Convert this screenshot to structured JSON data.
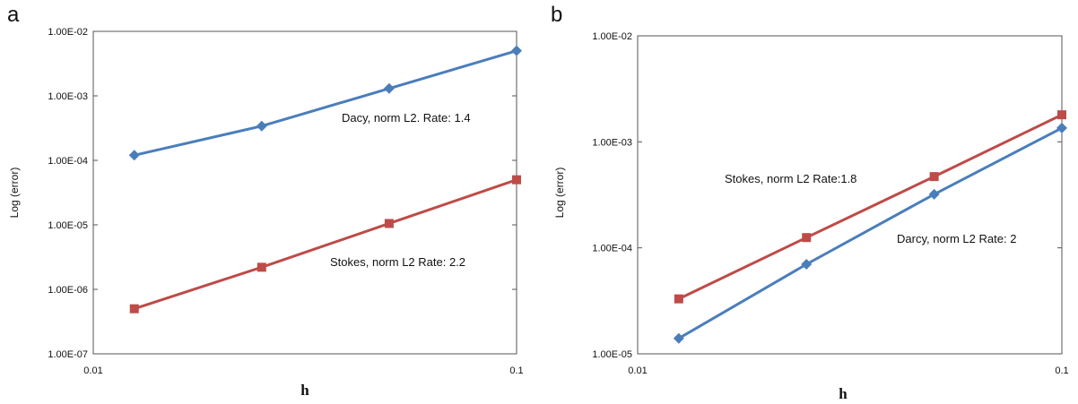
{
  "chart_data": [
    {
      "panel": "a",
      "type": "line",
      "xscale": "log",
      "yscale": "log",
      "xlabel": "h",
      "ylabel": "Log (error)",
      "xlim": [
        0.01,
        0.1
      ],
      "ylim": [
        1e-07,
        0.01
      ],
      "xticks": [
        "0.01",
        "0.1"
      ],
      "yticks": [
        "1.00E-07",
        "1.00E-06",
        "1.00E-05",
        "1.00E-04",
        "1.00E-03",
        "1.00E-02"
      ],
      "series": [
        {
          "color": "#4a7ebb",
          "marker": "diamond",
          "x": [
            0.0125,
            0.025,
            0.05,
            0.1
          ],
          "y": [
            0.00012,
            0.00034,
            0.0013,
            0.005
          ]
        },
        {
          "color": "#be4b48",
          "marker": "square",
          "x": [
            0.0125,
            0.025,
            0.05,
            0.1
          ],
          "y": [
            5e-07,
            2.2e-06,
            1.05e-05,
            5e-05
          ]
        }
      ],
      "annotations": [
        "Dacy, norm L2. Rate:  1.4",
        "Stokes, norm L2 Rate: 2.2"
      ]
    },
    {
      "panel": "b",
      "type": "line",
      "xscale": "log",
      "yscale": "log",
      "xlabel": "h",
      "ylabel": "Log (error)",
      "xlim": [
        0.01,
        0.1
      ],
      "ylim": [
        1e-05,
        0.01
      ],
      "xticks": [
        "0.01",
        "0.1"
      ],
      "yticks": [
        "1.00E-05",
        "1.00E-04",
        "1.00E-03",
        "1.00E-02"
      ],
      "series": [
        {
          "color": "#be4b48",
          "marker": "square",
          "x": [
            0.0125,
            0.025,
            0.05,
            0.1
          ],
          "y": [
            3.3e-05,
            0.000125,
            0.00047,
            0.0018
          ]
        },
        {
          "color": "#4a7ebb",
          "marker": "diamond",
          "x": [
            0.0125,
            0.025,
            0.05,
            0.1
          ],
          "y": [
            1.4e-05,
            7e-05,
            0.00032,
            0.00135
          ]
        }
      ],
      "annotations": [
        "Stokes, norm L2 Rate:1.8",
        "Darcy, norm L2 Rate: 2"
      ]
    }
  ]
}
